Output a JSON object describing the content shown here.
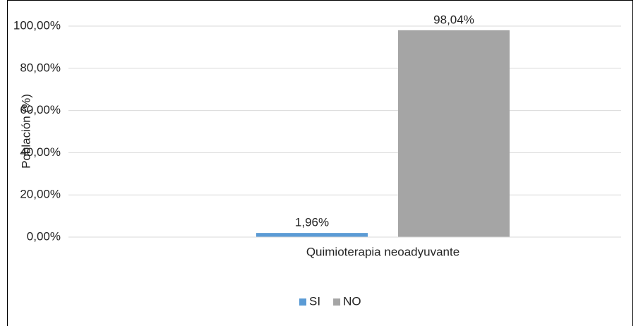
{
  "chart_data": {
    "type": "bar",
    "categories": [
      "Quimioterapia neoadyuvante"
    ],
    "series": [
      {
        "name": "SI",
        "color": "#5b9bd5",
        "values": [
          1.96
        ],
        "value_labels": [
          "1,96%"
        ]
      },
      {
        "name": "NO",
        "color": "#a5a5a5",
        "values": [
          98.04
        ],
        "value_labels": [
          "98,04%"
        ]
      }
    ],
    "ylabel": "Población (%)",
    "ylim": [
      0,
      100
    ],
    "yticks": [
      {
        "value": 0,
        "label": "0,00%"
      },
      {
        "value": 20,
        "label": "20,00%"
      },
      {
        "value": 40,
        "label": "40,00%"
      },
      {
        "value": 60,
        "label": "60,00%"
      },
      {
        "value": 80,
        "label": "80,00%"
      },
      {
        "value": 100,
        "label": "100,00%"
      }
    ],
    "grid": true,
    "legend": "bottom"
  }
}
